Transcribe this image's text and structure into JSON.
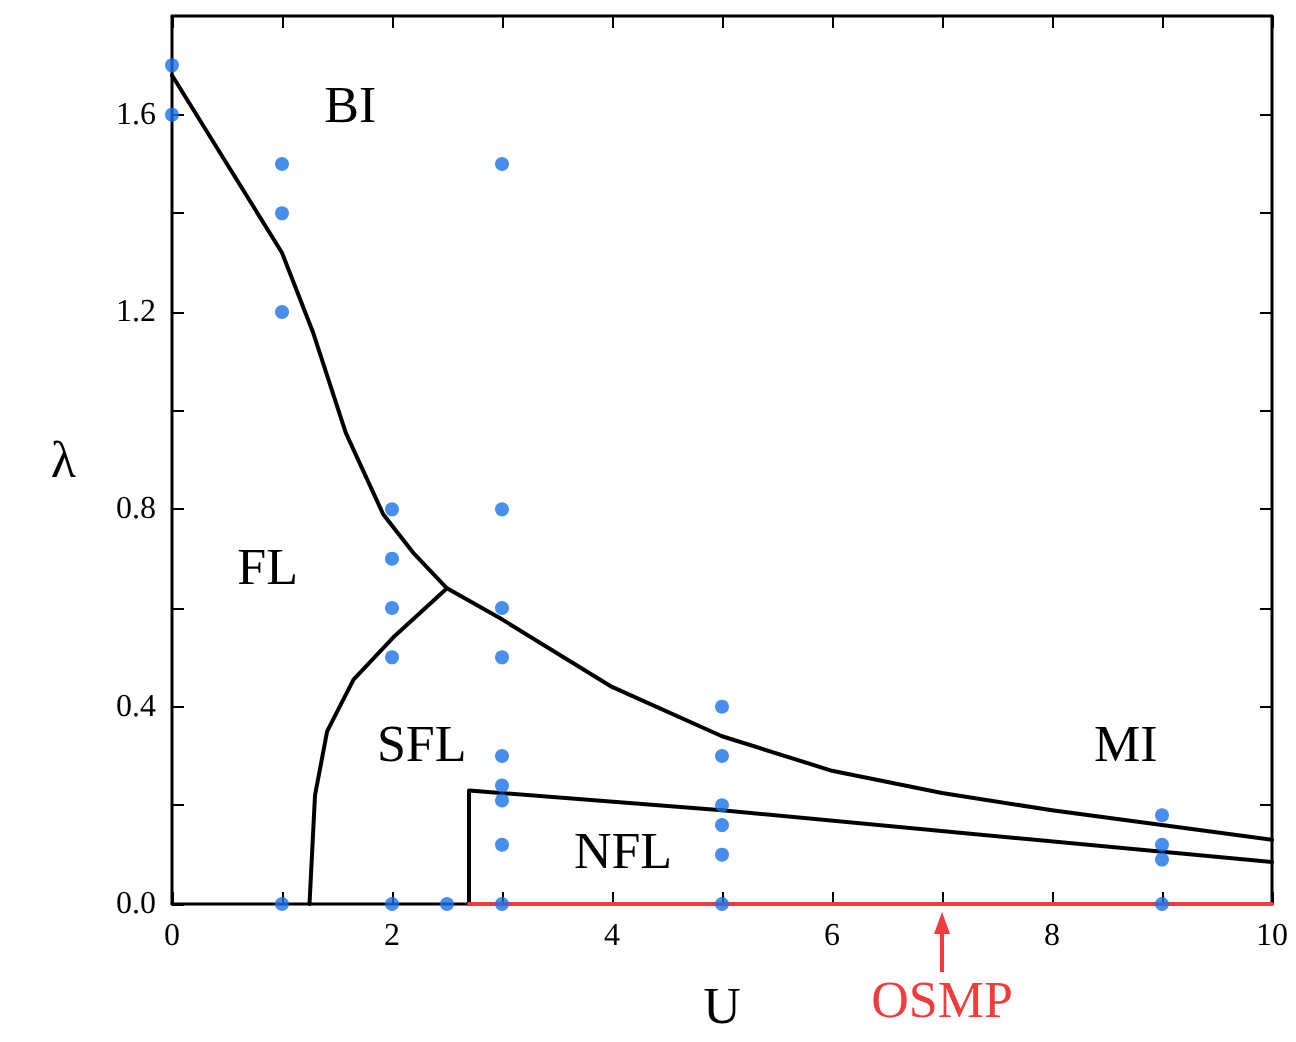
{
  "chart_data": {
    "type": "scatter",
    "xlabel": "U",
    "ylabel": "λ",
    "xlim": [
      0,
      10
    ],
    "ylim": [
      0,
      1.8
    ],
    "xticks": [
      0,
      {
        "value": 1,
        "label": null
      },
      2,
      {
        "value": 3,
        "label": null
      },
      4,
      {
        "value": 5,
        "label": null
      },
      6,
      {
        "value": 7,
        "label": null
      },
      8,
      {
        "value": 9,
        "label": null
      },
      10
    ],
    "yticks": [
      {
        "value": 0,
        "label": "0.0"
      },
      {
        "value": 0.2,
        "label": null
      },
      0.4,
      {
        "value": 0.6,
        "label": null
      },
      0.8,
      {
        "value": 1.0,
        "label": null
      },
      1.2,
      {
        "value": 1.4,
        "label": null
      },
      1.6
    ],
    "grid": false,
    "marker": "circle",
    "series": [
      {
        "color": "#1a73e8",
        "x": [
          0,
          0,
          1,
          1,
          1,
          1,
          2,
          2,
          2,
          2,
          2,
          2.5,
          3,
          3,
          3,
          3,
          3,
          3,
          3,
          3,
          3,
          5,
          5,
          5,
          5,
          5,
          5,
          9,
          9,
          9,
          9
        ],
        "values": [
          1.7,
          1.6,
          1.5,
          1.4,
          1.2,
          0,
          0.8,
          0.7,
          0.6,
          0.5,
          0,
          0,
          1.5,
          0.8,
          0.6,
          0.5,
          0.3,
          0.24,
          0.21,
          0.12,
          0,
          0.4,
          0.3,
          0.2,
          0.16,
          0.1,
          0,
          0.18,
          0.12,
          0.09,
          0
        ]
      },
      {
        "type": "line",
        "color": "#000000",
        "line_style": "solid",
        "marker": "none",
        "x": [
          0,
          0.5,
          1,
          1.28,
          1.58,
          1.92,
          2.2,
          2.5,
          3,
          4,
          5,
          6,
          7,
          8,
          9,
          10
        ],
        "values": [
          1.68,
          1.5,
          1.32,
          1.16,
          0.955,
          0.79,
          0.71,
          0.64,
          0.577,
          0.44,
          0.34,
          0.27,
          0.225,
          0.19,
          0.16,
          0.13
        ]
      },
      {
        "type": "line",
        "color": "#000000",
        "line_style": "solid",
        "marker": "none",
        "x": [
          1.25,
          1.3,
          1.41,
          1.65,
          2.01,
          2.5
        ],
        "values": [
          0,
          0.22,
          0.35,
          0.455,
          0.54,
          0.64
        ]
      },
      {
        "type": "line",
        "color": "#000000",
        "line_style": "solid",
        "marker": "none",
        "x": [
          2.7,
          2.7,
          5,
          10
        ],
        "values": [
          0,
          0.23,
          0.19,
          0.085
        ]
      },
      {
        "type": "line",
        "color": "#f03c3c",
        "line_style": "solid",
        "marker": "none",
        "x": [
          2.7,
          10
        ],
        "values": [
          0,
          0
        ]
      }
    ],
    "annotations": [
      "BI",
      "FL",
      "SFL",
      "NFL",
      "MI",
      {
        "text": "OSMP",
        "x": 7,
        "y": 0
      }
    ]
  }
}
